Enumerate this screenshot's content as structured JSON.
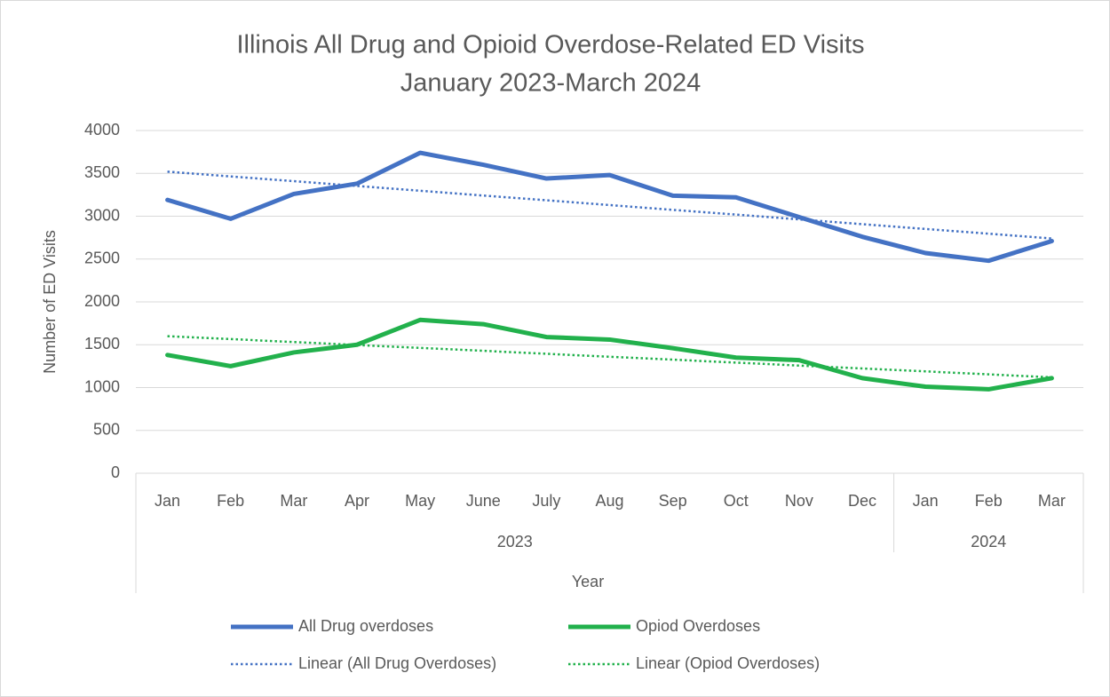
{
  "chart_data": {
    "type": "line",
    "title": "Illinois All Drug and Opioid Overdose-Related ED Visits",
    "subtitle": "January 2023-March 2024",
    "y_label": "Number of ED Visits",
    "x_label": "Year",
    "categories": [
      "Jan",
      "Feb",
      "Mar",
      "Apr",
      "May",
      "June",
      "July",
      "Aug",
      "Sep",
      "Oct",
      "Nov",
      "Dec",
      "Jan",
      "Feb",
      "Mar"
    ],
    "category_groups": [
      {
        "label": "2023",
        "count": 12
      },
      {
        "label": "2024",
        "count": 3
      }
    ],
    "series": [
      {
        "name": "All Drug overdoses",
        "color": "#4472c4",
        "style": "solid",
        "values": [
          3190,
          2970,
          3260,
          3380,
          3740,
          3600,
          3440,
          3480,
          3240,
          3220,
          2990,
          2760,
          2570,
          2480,
          2710
        ]
      },
      {
        "name": "Opiod Overdoses",
        "color": "#22b14c",
        "style": "solid",
        "values": [
          1380,
          1250,
          1410,
          1500,
          1790,
          1740,
          1590,
          1560,
          1460,
          1350,
          1320,
          1110,
          1010,
          980,
          1110
        ]
      },
      {
        "name": "Linear (All Drug Overdoses)",
        "color": "#4472c4",
        "style": "dotted",
        "values": [
          3520,
          3464,
          3409,
          3353,
          3297,
          3241,
          3186,
          3130,
          3074,
          3019,
          2963,
          2907,
          2851,
          2796,
          2740
        ]
      },
      {
        "name": "Linear (Opiod Overdoses)",
        "color": "#22b14c",
        "style": "dotted",
        "values": [
          1600,
          1566,
          1531,
          1497,
          1463,
          1429,
          1394,
          1360,
          1326,
          1291,
          1257,
          1223,
          1189,
          1154,
          1120
        ]
      }
    ],
    "ylim": [
      0,
      4000
    ],
    "yticks": [
      0,
      500,
      1000,
      1500,
      2000,
      2500,
      3000,
      3500,
      4000
    ],
    "grid": true,
    "legend": "bottom"
  }
}
